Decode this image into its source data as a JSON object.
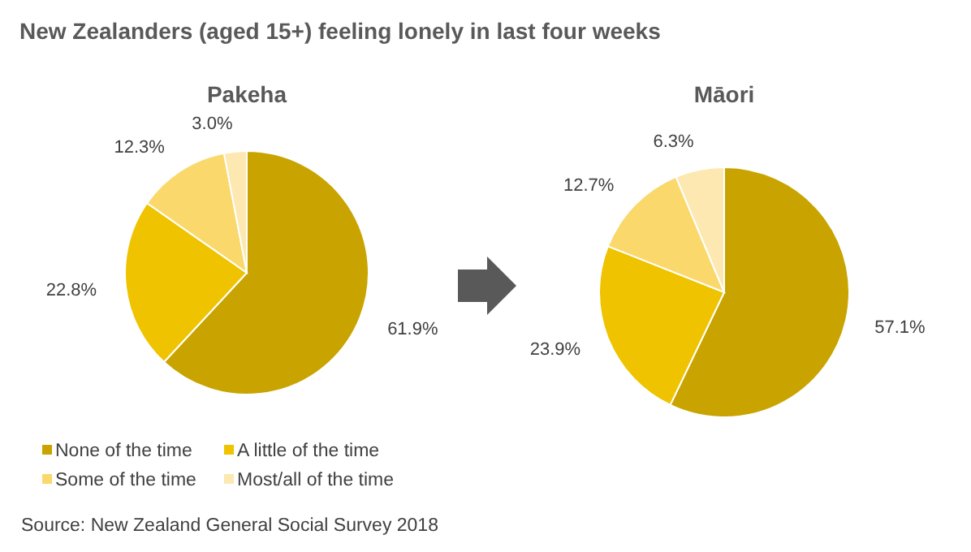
{
  "chart_data": [
    {
      "type": "pie",
      "title": "New Zealanders (aged 15+) feeling lonely in last four weeks",
      "subtitle": "Pakeha",
      "categories": [
        "None of the time",
        "A little of the time",
        "Some of the time",
        "Most/all of the time"
      ],
      "values": [
        61.9,
        22.8,
        12.3,
        3.0
      ],
      "value_labels": [
        "61.9%",
        "22.8%",
        "12.3%",
        "3.0%"
      ],
      "colors": [
        "#c9a400",
        "#f0c300",
        "#fad86b",
        "#fce8b0"
      ],
      "legend": "bottom",
      "annotations": [
        "Source: New Zealand General Social Survey 2018"
      ]
    },
    {
      "type": "pie",
      "subtitle": "Māori",
      "categories": [
        null,
        null,
        null,
        null
      ],
      "values": [
        57.1,
        23.9,
        12.7,
        6.3
      ],
      "value_labels": [
        "57.1%",
        "23.9%",
        "12.7%",
        "6.3%"
      ],
      "colors": [
        "#c9a400",
        "#f0c300",
        "#fad86b",
        "#fce8b0"
      ]
    }
  ]
}
